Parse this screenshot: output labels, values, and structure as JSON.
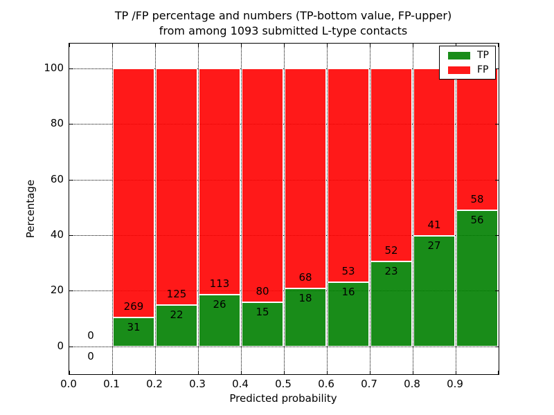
{
  "title": {
    "line1": "TP /FP percentage and numbers (TP-bottom value, FP-upper)",
    "line2": "from among 1093 submitted L-type contacts"
  },
  "axes": {
    "xlabel": "Predicted probability",
    "ylabel": "Percentage",
    "xtick_labels": [
      "0.0",
      "0.1",
      "0.2",
      "0.3",
      "0.4",
      "0.5",
      "0.6",
      "0.7",
      "0.8",
      "0.9"
    ],
    "ytick_labels": [
      "0",
      "20",
      "40",
      "60",
      "80",
      "100"
    ]
  },
  "legend": {
    "items": [
      {
        "label": "TP",
        "color": "#008000"
      },
      {
        "label": "FP",
        "color": "#ff0000"
      }
    ]
  },
  "colors": {
    "tp_bar": "#008000",
    "fp_bar": "#ff0000",
    "bar_alpha": 0.9,
    "grid": "#000000",
    "background": "#ffffff"
  },
  "chart_data": {
    "type": "bar",
    "stacked": true,
    "title": "TP /FP percentage and numbers (TP-bottom value, FP-upper) from among 1093 submitted L-type contacts",
    "xlabel": "Predicted probability",
    "ylabel": "Percentage",
    "xlim": [
      0.0,
      1.0
    ],
    "ylim": [
      -10,
      109
    ],
    "xticks": [
      0.0,
      0.1,
      0.2,
      0.3,
      0.4,
      0.5,
      0.6,
      0.7,
      0.8,
      0.9
    ],
    "yticks": [
      0,
      20,
      40,
      60,
      80,
      100
    ],
    "grid": "dotted",
    "legend_position": "upper-right",
    "total_contacts": 1093,
    "bin_edges": [
      0.0,
      0.1,
      0.2,
      0.3,
      0.4,
      0.5,
      0.6,
      0.7,
      0.8,
      0.9,
      1.0
    ],
    "series": [
      {
        "name": "TP",
        "color": "#008000",
        "counts": [
          0,
          31,
          22,
          26,
          15,
          18,
          16,
          23,
          27,
          56
        ]
      },
      {
        "name": "FP",
        "color": "#ff0000",
        "counts": [
          0,
          269,
          125,
          113,
          80,
          68,
          53,
          52,
          41,
          58
        ]
      }
    ],
    "tp_percent_of_bin": [
      0,
      10.33,
      14.97,
      18.71,
      15.79,
      20.93,
      23.19,
      30.67,
      39.71,
      49.12
    ]
  }
}
